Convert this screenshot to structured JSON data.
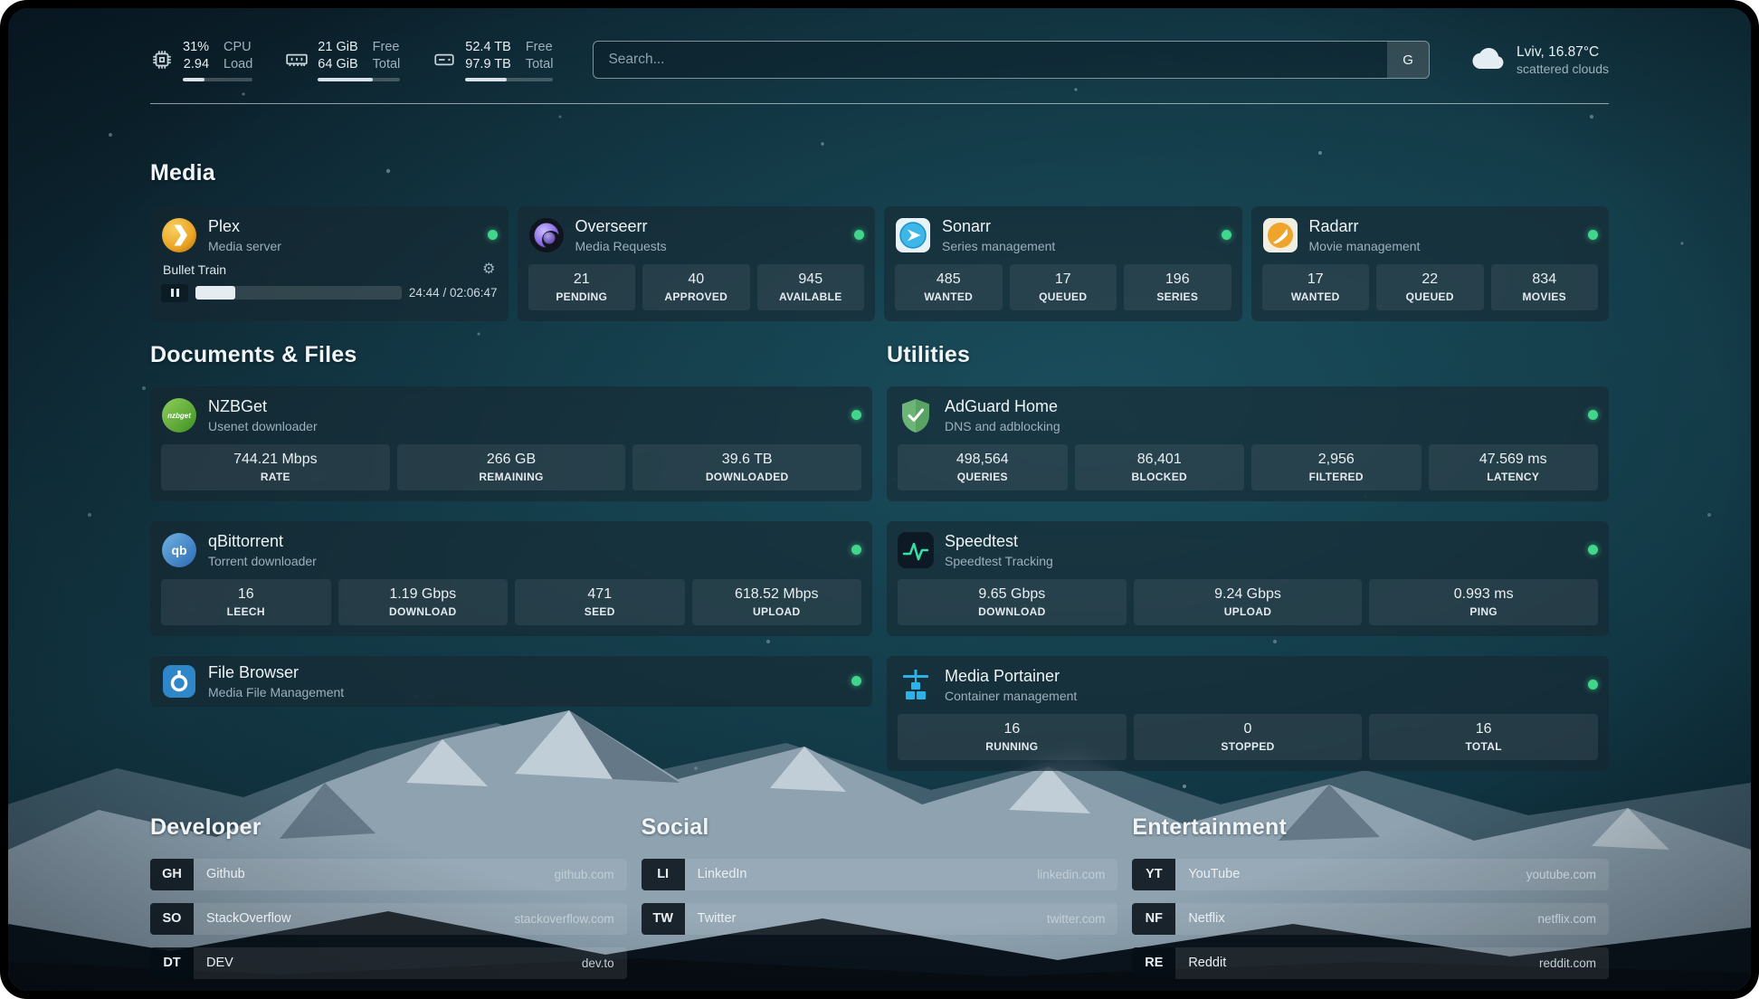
{
  "topbar": {
    "stats": [
      {
        "icon": "cpu-icon",
        "v1": "31%",
        "v2": "2.94",
        "l1": "CPU",
        "l2": "Load",
        "progress": 31
      },
      {
        "icon": "memory-icon",
        "v1": "21 GiB",
        "v2": "64 GiB",
        "l1": "Free",
        "l2": "Total",
        "progress": 67
      },
      {
        "icon": "disk-icon",
        "v1": "52.4 TB",
        "v2": "97.9 TB",
        "l1": "Free",
        "l2": "Total",
        "progress": 47
      }
    ],
    "search": {
      "placeholder": "Search...",
      "provider_label": "G"
    },
    "weather": {
      "icon": "cloud-icon",
      "location": "Lviv, 16.87°C",
      "condition": "scattered clouds"
    }
  },
  "icons": {
    "gear": "⚙"
  },
  "status_color": "#41d68b",
  "sections": {
    "media": {
      "title": "Media"
    },
    "documents": {
      "title": "Documents & Files"
    },
    "utilities": {
      "title": "Utilities"
    }
  },
  "services": {
    "plex": {
      "name": "Plex",
      "desc": "Media server",
      "status": "online",
      "now_playing": "Bullet Train",
      "time": "24:44 / 02:06:47",
      "progress_pct": 19.5
    },
    "overseerr": {
      "name": "Overseerr",
      "desc": "Media Requests",
      "status": "online",
      "stats": [
        {
          "value": "21",
          "label": "PENDING"
        },
        {
          "value": "40",
          "label": "APPROVED"
        },
        {
          "value": "945",
          "label": "AVAILABLE"
        }
      ]
    },
    "sonarr": {
      "name": "Sonarr",
      "desc": "Series management",
      "status": "online",
      "stats": [
        {
          "value": "485",
          "label": "WANTED"
        },
        {
          "value": "17",
          "label": "QUEUED"
        },
        {
          "value": "196",
          "label": "SERIES"
        }
      ]
    },
    "radarr": {
      "name": "Radarr",
      "desc": "Movie management",
      "status": "online",
      "stats": [
        {
          "value": "17",
          "label": "WANTED"
        },
        {
          "value": "22",
          "label": "QUEUED"
        },
        {
          "value": "834",
          "label": "MOVIES"
        }
      ]
    },
    "nzbget": {
      "name": "NZBGet",
      "desc": "Usenet downloader",
      "status": "online",
      "stats": [
        {
          "value": "744.21 Mbps",
          "label": "RATE"
        },
        {
          "value": "266 GB",
          "label": "REMAINING"
        },
        {
          "value": "39.6 TB",
          "label": "DOWNLOADED"
        }
      ]
    },
    "qbittorrent": {
      "name": "qBittorrent",
      "desc": "Torrent downloader",
      "status": "online",
      "stats": [
        {
          "value": "16",
          "label": "LEECH"
        },
        {
          "value": "1.19 Gbps",
          "label": "DOWNLOAD"
        },
        {
          "value": "471",
          "label": "SEED"
        },
        {
          "value": "618.52 Mbps",
          "label": "UPLOAD"
        }
      ]
    },
    "filebrowser": {
      "name": "File Browser",
      "desc": "Media File Management",
      "status": "online"
    },
    "adguard": {
      "name": "AdGuard Home",
      "desc": "DNS and adblocking",
      "status": "online",
      "stats": [
        {
          "value": "498,564",
          "label": "QUERIES"
        },
        {
          "value": "86,401",
          "label": "BLOCKED"
        },
        {
          "value": "2,956",
          "label": "FILTERED"
        },
        {
          "value": "47.569 ms",
          "label": "LATENCY"
        }
      ]
    },
    "speedtest": {
      "name": "Speedtest",
      "desc": "Speedtest Tracking",
      "status": "online",
      "stats": [
        {
          "value": "9.65 Gbps",
          "label": "DOWNLOAD"
        },
        {
          "value": "9.24 Gbps",
          "label": "UPLOAD"
        },
        {
          "value": "0.993 ms",
          "label": "PING"
        }
      ]
    },
    "portainer": {
      "name": "Media Portainer",
      "desc": "Container management",
      "status": "online",
      "stats": [
        {
          "value": "16",
          "label": "RUNNING"
        },
        {
          "value": "0",
          "label": "STOPPED"
        },
        {
          "value": "16",
          "label": "TOTAL"
        }
      ]
    }
  },
  "bookmarks": {
    "developer": {
      "title": "Developer",
      "items": [
        {
          "abbr": "GH",
          "name": "Github",
          "url": "github.com"
        },
        {
          "abbr": "SO",
          "name": "StackOverflow",
          "url": "stackoverflow.com"
        },
        {
          "abbr": "DT",
          "name": "DEV",
          "url": "dev.to"
        }
      ]
    },
    "social": {
      "title": "Social",
      "items": [
        {
          "abbr": "LI",
          "name": "LinkedIn",
          "url": "linkedin.com"
        },
        {
          "abbr": "TW",
          "name": "Twitter",
          "url": "twitter.com"
        }
      ]
    },
    "entertainment": {
      "title": "Entertainment",
      "items": [
        {
          "abbr": "YT",
          "name": "YouTube",
          "url": "youtube.com"
        },
        {
          "abbr": "NF",
          "name": "Netflix",
          "url": "netflix.com"
        },
        {
          "abbr": "RE",
          "name": "Reddit",
          "url": "reddit.com"
        }
      ]
    }
  }
}
